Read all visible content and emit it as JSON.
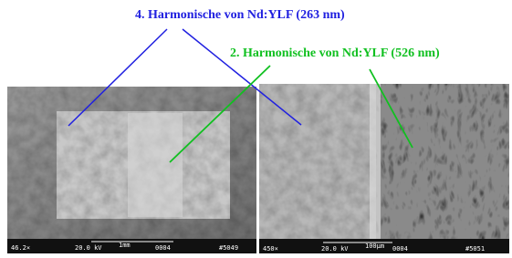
{
  "labels": {
    "uv": "4. Harmonische von Nd:YLF (263 nm)",
    "green": "2. Harmonische von Nd:YLF (526 nm)"
  },
  "images": [
    {
      "footer": [
        "46.2×",
        "20.0 kV",
        "1mm",
        "0004",
        "#5049"
      ]
    },
    {
      "footer": [
        "450×",
        "20.0 kV",
        "100µm",
        "0004",
        "#5051"
      ]
    }
  ]
}
